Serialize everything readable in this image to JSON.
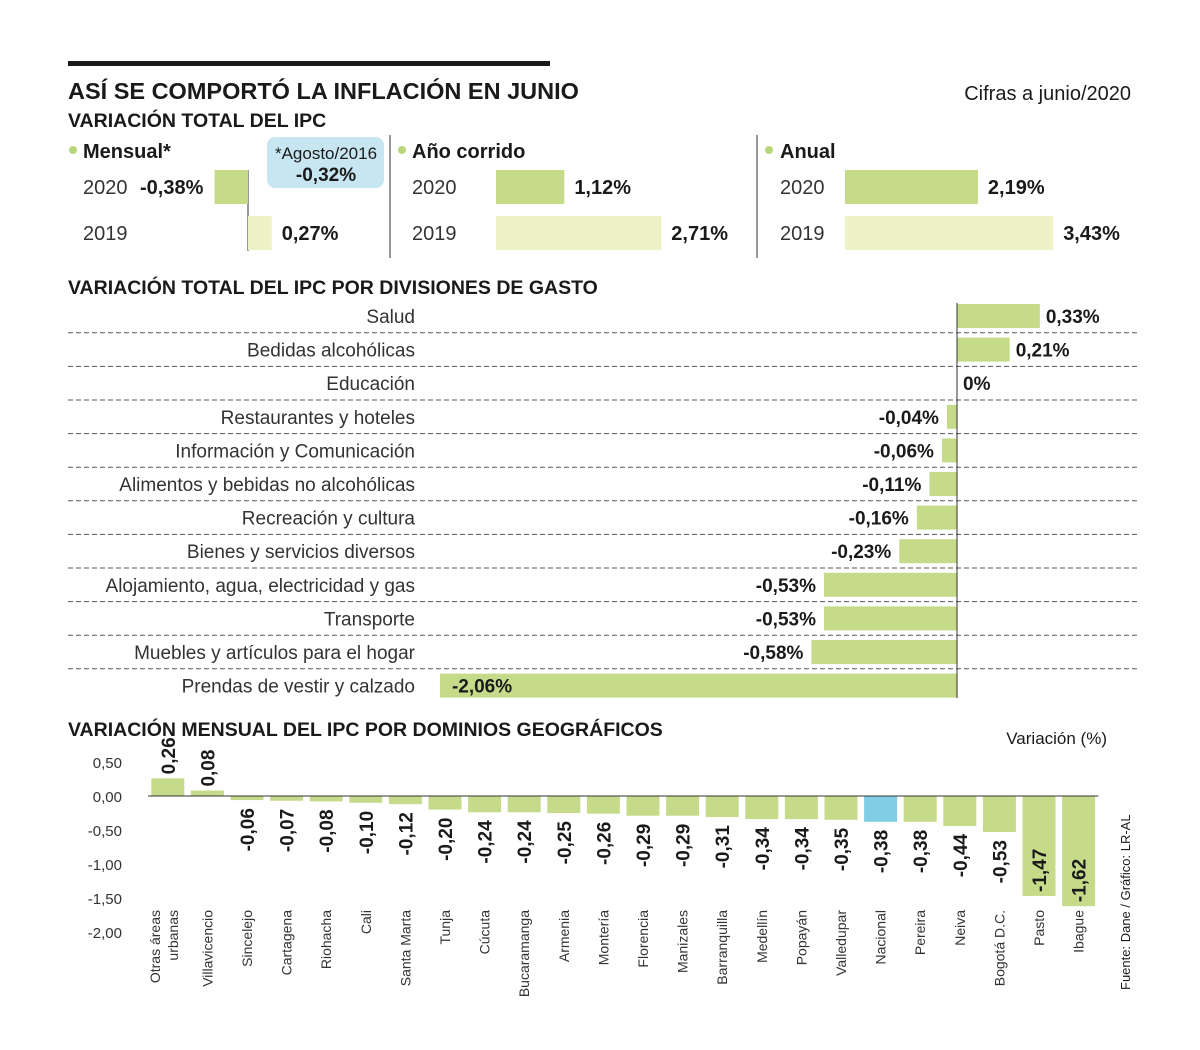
{
  "header": {
    "title": "ASÍ SE COMPORTÓ LA INFLACIÓN EN JUNIO",
    "subtitle": "VARIACIÓN TOTAL DEL IPC",
    "note": "Cifras a junio/2020"
  },
  "colors": {
    "current": "#c5db8a",
    "previous": "#eef2c6",
    "highlight": "#82cde6",
    "callout": "#c8e6f1",
    "bullet": "#b7d77a"
  },
  "summary": {
    "mensual": {
      "label": "Mensual*",
      "rows": [
        {
          "year": "2020",
          "value": -0.38,
          "text": "-0,38%"
        },
        {
          "year": "2019",
          "value": 0.27,
          "text": "0,27%"
        }
      ],
      "callout": {
        "label": "*Agosto/2016",
        "value": "-0,32%"
      }
    },
    "ano_corrido": {
      "label": "Año corrido",
      "rows": [
        {
          "year": "2020",
          "value": 1.12,
          "text": "1,12%"
        },
        {
          "year": "2019",
          "value": 2.71,
          "text": "2,71%"
        }
      ]
    },
    "anual": {
      "label": "Anual",
      "rows": [
        {
          "year": "2020",
          "value": 2.19,
          "text": "2,19%"
        },
        {
          "year": "2019",
          "value": 3.43,
          "text": "3,43%"
        }
      ]
    }
  },
  "chart_data": [
    {
      "type": "bar",
      "orientation": "horizontal",
      "title": "VARIACIÓN TOTAL DEL IPC POR DIVISIONES DE GASTO",
      "categories": [
        "Salud",
        "Bedidas alcohólicas",
        "Educación",
        "Restaurantes y hoteles",
        "Información y Comunicación",
        "Alimentos y bebidas no alcohólicas",
        "Recreación y cultura",
        "Bienes y servicios diversos",
        "Alojamiento, agua, electricidad y gas",
        "Transporte",
        "Muebles y artículos para el hogar",
        "Prendas de vestir y calzado"
      ],
      "values": [
        0.33,
        0.21,
        0,
        -0.04,
        -0.06,
        -0.11,
        -0.16,
        -0.23,
        -0.53,
        -0.53,
        -0.58,
        -2.06
      ],
      "labels": [
        "0,33%",
        "0,21%",
        "0%",
        "-0,04%",
        "-0,06%",
        "-0,11%",
        "-0,16%",
        "-0,23%",
        "-0,53%",
        "-0,53%",
        "-0,58%",
        "-2,06%"
      ]
    },
    {
      "type": "bar",
      "title": "VARIACIÓN MENSUAL DEL IPC POR DOMINIOS GEOGRÁFICOS",
      "ylabel": "Variación (%)",
      "ylim": [
        -2.0,
        0.5
      ],
      "yticks": [
        "0,50",
        "0,00",
        "-0,50",
        "-1,00",
        "-1,50",
        "-2,00"
      ],
      "ytick_values": [
        0.5,
        0,
        -0.5,
        -1.0,
        -1.5,
        -2.0
      ],
      "categories": [
        [
          "Otras áreas",
          "urbanas"
        ],
        [
          "Villavicencio"
        ],
        [
          "Sincelejo"
        ],
        [
          "Cartagena"
        ],
        [
          "Riohacha"
        ],
        [
          "Cali"
        ],
        [
          "Santa Marta"
        ],
        [
          "Tunja"
        ],
        [
          "Cúcuta"
        ],
        [
          "Bucaramanga"
        ],
        [
          "Armenia"
        ],
        [
          "Montería"
        ],
        [
          "Florencia"
        ],
        [
          "Manizales"
        ],
        [
          "Barranquilla"
        ],
        [
          "Medellín"
        ],
        [
          "Popayán"
        ],
        [
          "Valledupar"
        ],
        [
          "Nacional"
        ],
        [
          "Pereira"
        ],
        [
          "Neiva"
        ],
        [
          "Bogotá D.C."
        ],
        [
          "Pasto"
        ],
        [
          "Ibague"
        ]
      ],
      "values": [
        0.26,
        0.08,
        -0.06,
        -0.07,
        -0.08,
        -0.1,
        -0.12,
        -0.2,
        -0.24,
        -0.24,
        -0.25,
        -0.26,
        -0.29,
        -0.29,
        -0.31,
        -0.34,
        -0.34,
        -0.35,
        -0.38,
        -0.38,
        -0.44,
        -0.53,
        -1.47,
        -1.62
      ],
      "labels": [
        "0,26",
        "0,08",
        "-0,06",
        "-0,07",
        "-0,08",
        "-0,10",
        "-0,12",
        "-0,20",
        "-0,24",
        "-0,24",
        "-0,25",
        "-0,26",
        "-0,29",
        "-0,29",
        "-0,31",
        "-0,34",
        "-0,34",
        "-0,35",
        "-0,38",
        "-0,38",
        "-0,44",
        "-0,53",
        "-1,47",
        "-1,62"
      ],
      "highlighted": "Nacional"
    }
  ],
  "source": "Fuente: Dane / Gráfico: LR-AL"
}
